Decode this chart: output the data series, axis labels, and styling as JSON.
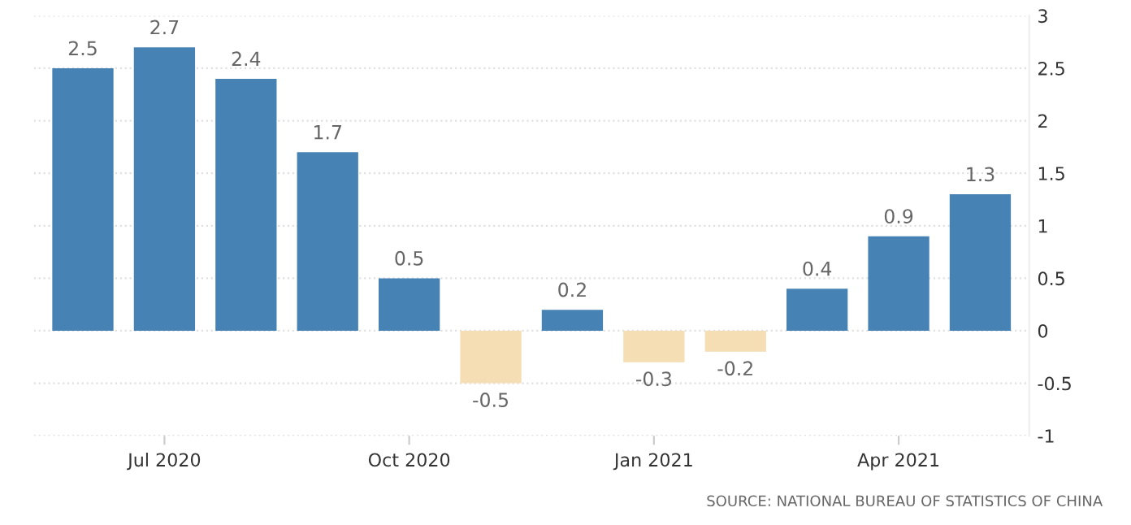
{
  "chart_data": {
    "type": "bar",
    "categories": [
      null,
      "Jul 2020",
      null,
      null,
      "Oct 2020",
      null,
      null,
      "Jan 2021",
      null,
      null,
      "Apr 2021",
      null
    ],
    "values": [
      2.5,
      2.7,
      2.4,
      1.7,
      0.5,
      -0.5,
      0.2,
      -0.3,
      -0.2,
      0.4,
      0.9,
      1.3
    ],
    "colors": [
      "#4682b4",
      "#4682b4",
      "#4682b4",
      "#4682b4",
      "#4682b4",
      "#f5deb3",
      "#4682b4",
      "#f5deb3",
      "#f5deb3",
      "#4682b4",
      "#4682b4",
      "#4682b4"
    ],
    "ylim": [
      -1,
      3
    ],
    "yticks": [
      -1,
      -0.5,
      0,
      0.5,
      1,
      1.5,
      2,
      2.5,
      3
    ],
    "grid": "y",
    "data_labels": true,
    "legend": false,
    "annotations": [
      "SOURCE: NATIONAL BUREAU OF STATISTICS OF CHINA"
    ]
  }
}
